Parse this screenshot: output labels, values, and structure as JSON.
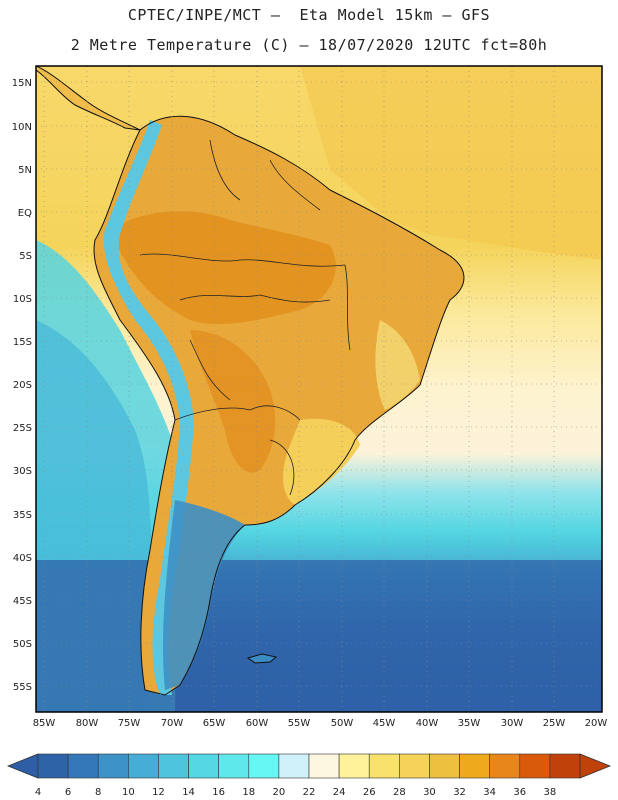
{
  "header": {
    "line1": "CPTEC/INPE/MCT –  Eta Model 15km – GFS",
    "line2": "2 Metre Temperature (C) – 18/07/2020 12UTC fct=80h"
  },
  "map": {
    "lat_labels": [
      "15N",
      "10N",
      "5N",
      "EQ",
      "5S",
      "10S",
      "15S",
      "20S",
      "25S",
      "30S",
      "35S",
      "40S",
      "45S",
      "50S",
      "55S"
    ],
    "lon_labels": [
      "85W",
      "80W",
      "75W",
      "70W",
      "65W",
      "60W",
      "55W",
      "50W",
      "45W",
      "40W",
      "35W",
      "30W",
      "25W",
      "20W"
    ],
    "lon_range": [
      -86,
      -20
    ],
    "lat_range": [
      -58,
      16
    ]
  },
  "colorbar": {
    "values": [
      "4",
      "6",
      "8",
      "10",
      "12",
      "14",
      "16",
      "18",
      "20",
      "22",
      "24",
      "26",
      "28",
      "30",
      "32",
      "34",
      "36",
      "38"
    ],
    "low_arrow_color": "#2e5ea6",
    "high_arrow_color": "#c0420a",
    "colors": [
      "#2f63a8",
      "#3578b9",
      "#3d93c8",
      "#46aed6",
      "#4fc5dd",
      "#55d8e4",
      "#5fe8ec",
      "#66f7f5",
      "#cff2fa",
      "#fdf7e0",
      "#fff29a",
      "#f8e26c",
      "#f5d25a",
      "#eec040",
      "#eea91c",
      "#e8851b",
      "#d85a0a",
      "#c0420a"
    ]
  }
}
